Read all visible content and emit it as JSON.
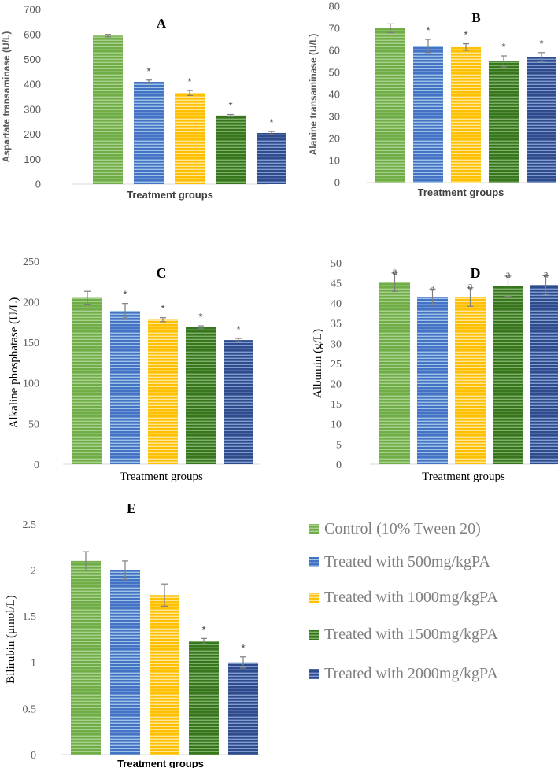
{
  "legend": {
    "entries": [
      {
        "label": "Control (10% Tween 20)",
        "color": "#70AD47",
        "light": "#a9d18e"
      },
      {
        "label": "Treated with 500mg/kgPA",
        "color": "#4472C4",
        "light": "#9dc3e6"
      },
      {
        "label": "Treated with 1000mg/kgPA",
        "color": "#FFC000",
        "light": "#ffe699"
      },
      {
        "label": "Treated with 1500mg/kgPA",
        "color": "#38761D",
        "light": "#7fb069"
      },
      {
        "label": "Treated with 2000mg/kgPA",
        "color": "#2F4B8C",
        "light": "#7f9bd0"
      }
    ]
  },
  "chart_data": [
    {
      "panel": "A",
      "type": "bar",
      "title": "A",
      "xlabel": "Treatment groups",
      "ylabel": "Aspartate transaminase (U/L)",
      "ylim": [
        0,
        700
      ],
      "yticks": [
        0,
        100,
        200,
        300,
        400,
        500,
        600,
        700
      ],
      "tick_labels": [
        "0",
        "100",
        "200",
        "300",
        "400",
        "500",
        "600",
        "700"
      ],
      "categories": [
        "Control (10% Tween 20)",
        "Treated with 500mg/kgPA",
        "Treated with 1000mg/kgPA",
        "Treated with 1500mg/kgPA",
        "Treated with 2000mg/kgPA"
      ],
      "values": [
        595,
        410,
        365,
        275,
        205
      ],
      "errors": [
        5,
        7,
        10,
        4,
        6
      ],
      "marks": [
        "",
        "*",
        "*",
        "*",
        "*"
      ]
    },
    {
      "panel": "B",
      "type": "bar",
      "title": "B",
      "xlabel": "Treatment groups",
      "ylabel": "Alanine transaminase (U/L)",
      "ylim": [
        0,
        80
      ],
      "yticks": [
        0,
        10,
        20,
        30,
        40,
        50,
        60,
        70,
        80
      ],
      "tick_labels": [
        "0",
        "10",
        "20",
        "30",
        "40",
        "50",
        "60",
        "70",
        "80"
      ],
      "categories": [
        "Control (10% Tween 20)",
        "Treated with 500mg/kgPA",
        "Treated with 1000mg/kgPA",
        "Treated with 1500mg/kgPA",
        "Treated with 2000mg/kgPA"
      ],
      "values": [
        70,
        62,
        61.5,
        55,
        57
      ],
      "errors": [
        2,
        3,
        1.5,
        2.5,
        2
      ],
      "marks": [
        "",
        "*",
        "*",
        "*",
        "*"
      ]
    },
    {
      "panel": "C",
      "type": "bar",
      "title": "C",
      "xlabel": "Treatment groups",
      "ylabel": "Alkaline phosphatase (U/L)",
      "ylim": [
        0,
        250
      ],
      "yticks": [
        0,
        50,
        100,
        150,
        200,
        250
      ],
      "tick_labels": [
        "0",
        "50",
        "100",
        "150",
        "200",
        "250"
      ],
      "categories": [
        "Control (10% Tween 20)",
        "Treated with 500mg/kgPA",
        "Treated with 1000mg/kgPA",
        "Treated with 1500mg/kgPA",
        "Treated with 2000mg/kgPA"
      ],
      "values": [
        205,
        189,
        178,
        169,
        153
      ],
      "errors": [
        8,
        9,
        2.5,
        1.5,
        2
      ],
      "marks": [
        "",
        "*",
        "*",
        "*",
        "*"
      ]
    },
    {
      "panel": "D",
      "type": "bar",
      "title": "D",
      "xlabel": "Treatment groups",
      "ylabel": "Albumin (g/L)",
      "ylim": [
        0,
        50
      ],
      "yticks": [
        0,
        5,
        10,
        15,
        20,
        25,
        30,
        35,
        40,
        45,
        50
      ],
      "tick_labels": [
        "0",
        "5",
        "10",
        "15",
        "20",
        "25",
        "30",
        "35",
        "40",
        "45",
        "50"
      ],
      "categories": [
        "Control (10% Tween 20)",
        "Treated with 500mg/kgPA",
        "Treated with 1000mg/kgPA",
        "Treated with 1500mg/kgPA",
        "Treated with 2000mg/kgPA"
      ],
      "values": [
        45.2,
        41.5,
        41.5,
        44.2,
        44.5
      ],
      "errors": [
        2.3,
        2,
        2.3,
        2.5,
        2.3
      ],
      "marks": [
        "a",
        "a",
        "a",
        "a",
        "a"
      ]
    },
    {
      "panel": "E",
      "type": "bar",
      "title": "E",
      "xlabel": "Treatment groups",
      "ylabel": "Bilirubin (μmol/L)",
      "ylim": [
        0,
        2.5
      ],
      "yticks": [
        0,
        0.5,
        1,
        1.5,
        2,
        2.5
      ],
      "tick_labels": [
        "0",
        "0.5",
        "1",
        "1.5",
        "2",
        "2.5"
      ],
      "categories": [
        "Control (10% Tween 20)",
        "Treated with 500mg/kgPA",
        "Treated with 1000mg/kgPA",
        "Treated with 1500mg/kgPA",
        "Treated with 2000mg/kgPA"
      ],
      "values": [
        2.1,
        2.0,
        1.73,
        1.23,
        1.0
      ],
      "errors": [
        0.1,
        0.1,
        0.12,
        0.03,
        0.06
      ],
      "marks": [
        "",
        "",
        "",
        "*",
        "*"
      ]
    }
  ]
}
